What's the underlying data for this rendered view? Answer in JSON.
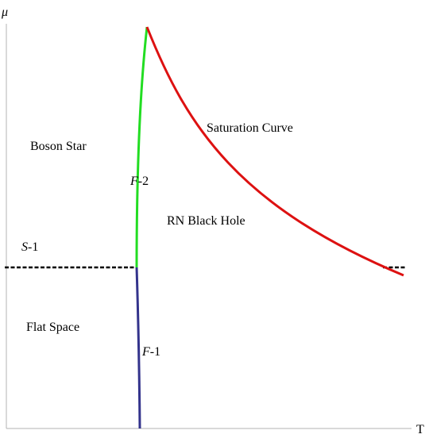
{
  "axes": {
    "y_label": "μ",
    "x_label": "T"
  },
  "regions": {
    "boson_star": "Boson Star",
    "flat_space": "Flat Space",
    "rn_black_hole": "RN Black Hole",
    "saturation_curve": "Saturation Curve"
  },
  "lines": {
    "s1": {
      "italic": "S",
      "rest": "-1"
    },
    "f1": {
      "italic": "F",
      "rest": "-1"
    },
    "f2": {
      "italic": "F",
      "rest": "-2"
    }
  },
  "colors": {
    "axis": "#b3b3b3",
    "f1": "#33338c",
    "f2": "#22dd22",
    "saturation": "#dd1111",
    "s1": "#000000"
  }
}
